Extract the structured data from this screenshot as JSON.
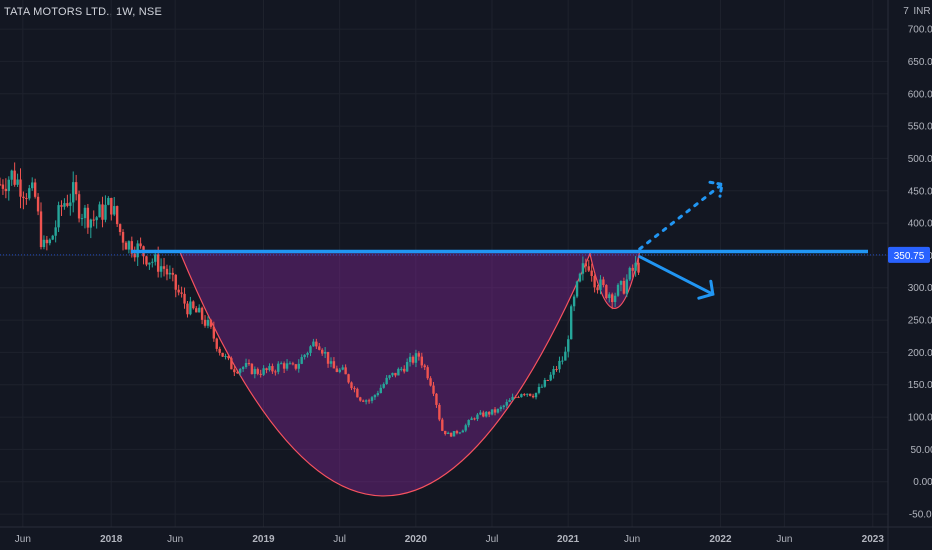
{
  "header": {
    "title": "TATA MOTORS LTD., 1W, NSE"
  },
  "chart_data": {
    "type": "candlestick",
    "symbol": "TATA MOTORS LTD.",
    "interval": "1W",
    "exchange": "NSE",
    "currency_label": "INR",
    "y_axis": {
      "ticks": [
        "-50.00",
        "0.00",
        "50.00",
        "100.00",
        "150.00",
        "200.00",
        "250.00",
        "300.00",
        "350.00",
        "400.00",
        "450.00",
        "500.00",
        "550.00",
        "600.00",
        "650.00",
        "700.00"
      ],
      "top_label": "7",
      "range": [
        -70,
        745
      ]
    },
    "x_axis": {
      "ticks": [
        {
          "label": "Jun",
          "t": 2017.42,
          "bold": false
        },
        {
          "label": "2018",
          "t": 2018.0,
          "bold": true
        },
        {
          "label": "Jun",
          "t": 2018.42,
          "bold": false
        },
        {
          "label": "2019",
          "t": 2019.0,
          "bold": true
        },
        {
          "label": "Jul",
          "t": 2019.5,
          "bold": false
        },
        {
          "label": "2020",
          "t": 2020.0,
          "bold": true
        },
        {
          "label": "Jul",
          "t": 2020.5,
          "bold": false
        },
        {
          "label": "2021",
          "t": 2021.0,
          "bold": true
        },
        {
          "label": "Jun",
          "t": 2021.42,
          "bold": false
        },
        {
          "label": "2022",
          "t": 2022.0,
          "bold": true
        },
        {
          "label": "Jun",
          "t": 2022.42,
          "bold": false
        },
        {
          "label": "2023",
          "t": 2023.0,
          "bold": true
        }
      ],
      "range": [
        2017.27,
        2023.1
      ]
    },
    "last_price": {
      "label": "350.75",
      "value": 350.75
    },
    "price_path": [
      [
        2017.27,
        460
      ],
      [
        2017.35,
        475
      ],
      [
        2017.42,
        455
      ],
      [
        2017.5,
        440
      ],
      [
        2017.55,
        360
      ],
      [
        2017.6,
        370
      ],
      [
        2017.68,
        430
      ],
      [
        2017.75,
        445
      ],
      [
        2017.8,
        420
      ],
      [
        2017.88,
        405
      ],
      [
        2018.0,
        430
      ],
      [
        2018.05,
        390
      ],
      [
        2018.1,
        370
      ],
      [
        2018.18,
        360
      ],
      [
        2018.25,
        345
      ],
      [
        2018.35,
        330
      ],
      [
        2018.42,
        300
      ],
      [
        2018.5,
        270
      ],
      [
        2018.58,
        258
      ],
      [
        2018.64,
        240
      ],
      [
        2018.72,
        200
      ],
      [
        2018.8,
        175
      ],
      [
        2018.88,
        178
      ],
      [
        2018.95,
        170
      ],
      [
        2019.05,
        172
      ],
      [
        2019.12,
        182
      ],
      [
        2019.2,
        175
      ],
      [
        2019.28,
        200
      ],
      [
        2019.35,
        220
      ],
      [
        2019.4,
        200
      ],
      [
        2019.45,
        175
      ],
      [
        2019.52,
        170
      ],
      [
        2019.58,
        150
      ],
      [
        2019.63,
        130
      ],
      [
        2019.7,
        125
      ],
      [
        2019.75,
        140
      ],
      [
        2019.82,
        160
      ],
      [
        2019.88,
        170
      ],
      [
        2019.96,
        185
      ],
      [
        2020.02,
        195
      ],
      [
        2020.08,
        165
      ],
      [
        2020.12,
        140
      ],
      [
        2020.17,
        80
      ],
      [
        2020.22,
        72
      ],
      [
        2020.3,
        80
      ],
      [
        2020.38,
        100
      ],
      [
        2020.46,
        105
      ],
      [
        2020.54,
        110
      ],
      [
        2020.62,
        125
      ],
      [
        2020.7,
        140
      ],
      [
        2020.78,
        135
      ],
      [
        2020.86,
        155
      ],
      [
        2020.92,
        175
      ],
      [
        2020.98,
        195
      ],
      [
        2021.02,
        260
      ],
      [
        2021.06,
        300
      ],
      [
        2021.1,
        330
      ],
      [
        2021.14,
        340
      ],
      [
        2021.18,
        310
      ],
      [
        2021.24,
        295
      ],
      [
        2021.3,
        290
      ],
      [
        2021.36,
        300
      ],
      [
        2021.42,
        325
      ],
      [
        2021.48,
        340
      ]
    ],
    "annotations": {
      "resistance_level": 356,
      "cup": {
        "rim": 356,
        "bottom": -22,
        "start": 2018.45,
        "end": 2021.15,
        "low_t": 2019.78
      },
      "handle": {
        "rim": 356,
        "bottom": 268,
        "start": 2021.14,
        "end": 2021.47
      },
      "projection_up": [
        [
          2021.47,
          360
        ],
        [
          2022.01,
          460
        ]
      ],
      "projection_down": [
        [
          2021.47,
          348
        ],
        [
          2021.95,
          290
        ]
      ]
    },
    "colors": {
      "background": "#131722",
      "up": "#26a69a",
      "down": "#ef5350",
      "resistance_line": "#2196f3",
      "cup_fill": "rgba(156,39,176,0.35)",
      "cup_stroke": "#f7525f",
      "arrow": "#2196f3",
      "price_badge": "#2962ff"
    }
  }
}
